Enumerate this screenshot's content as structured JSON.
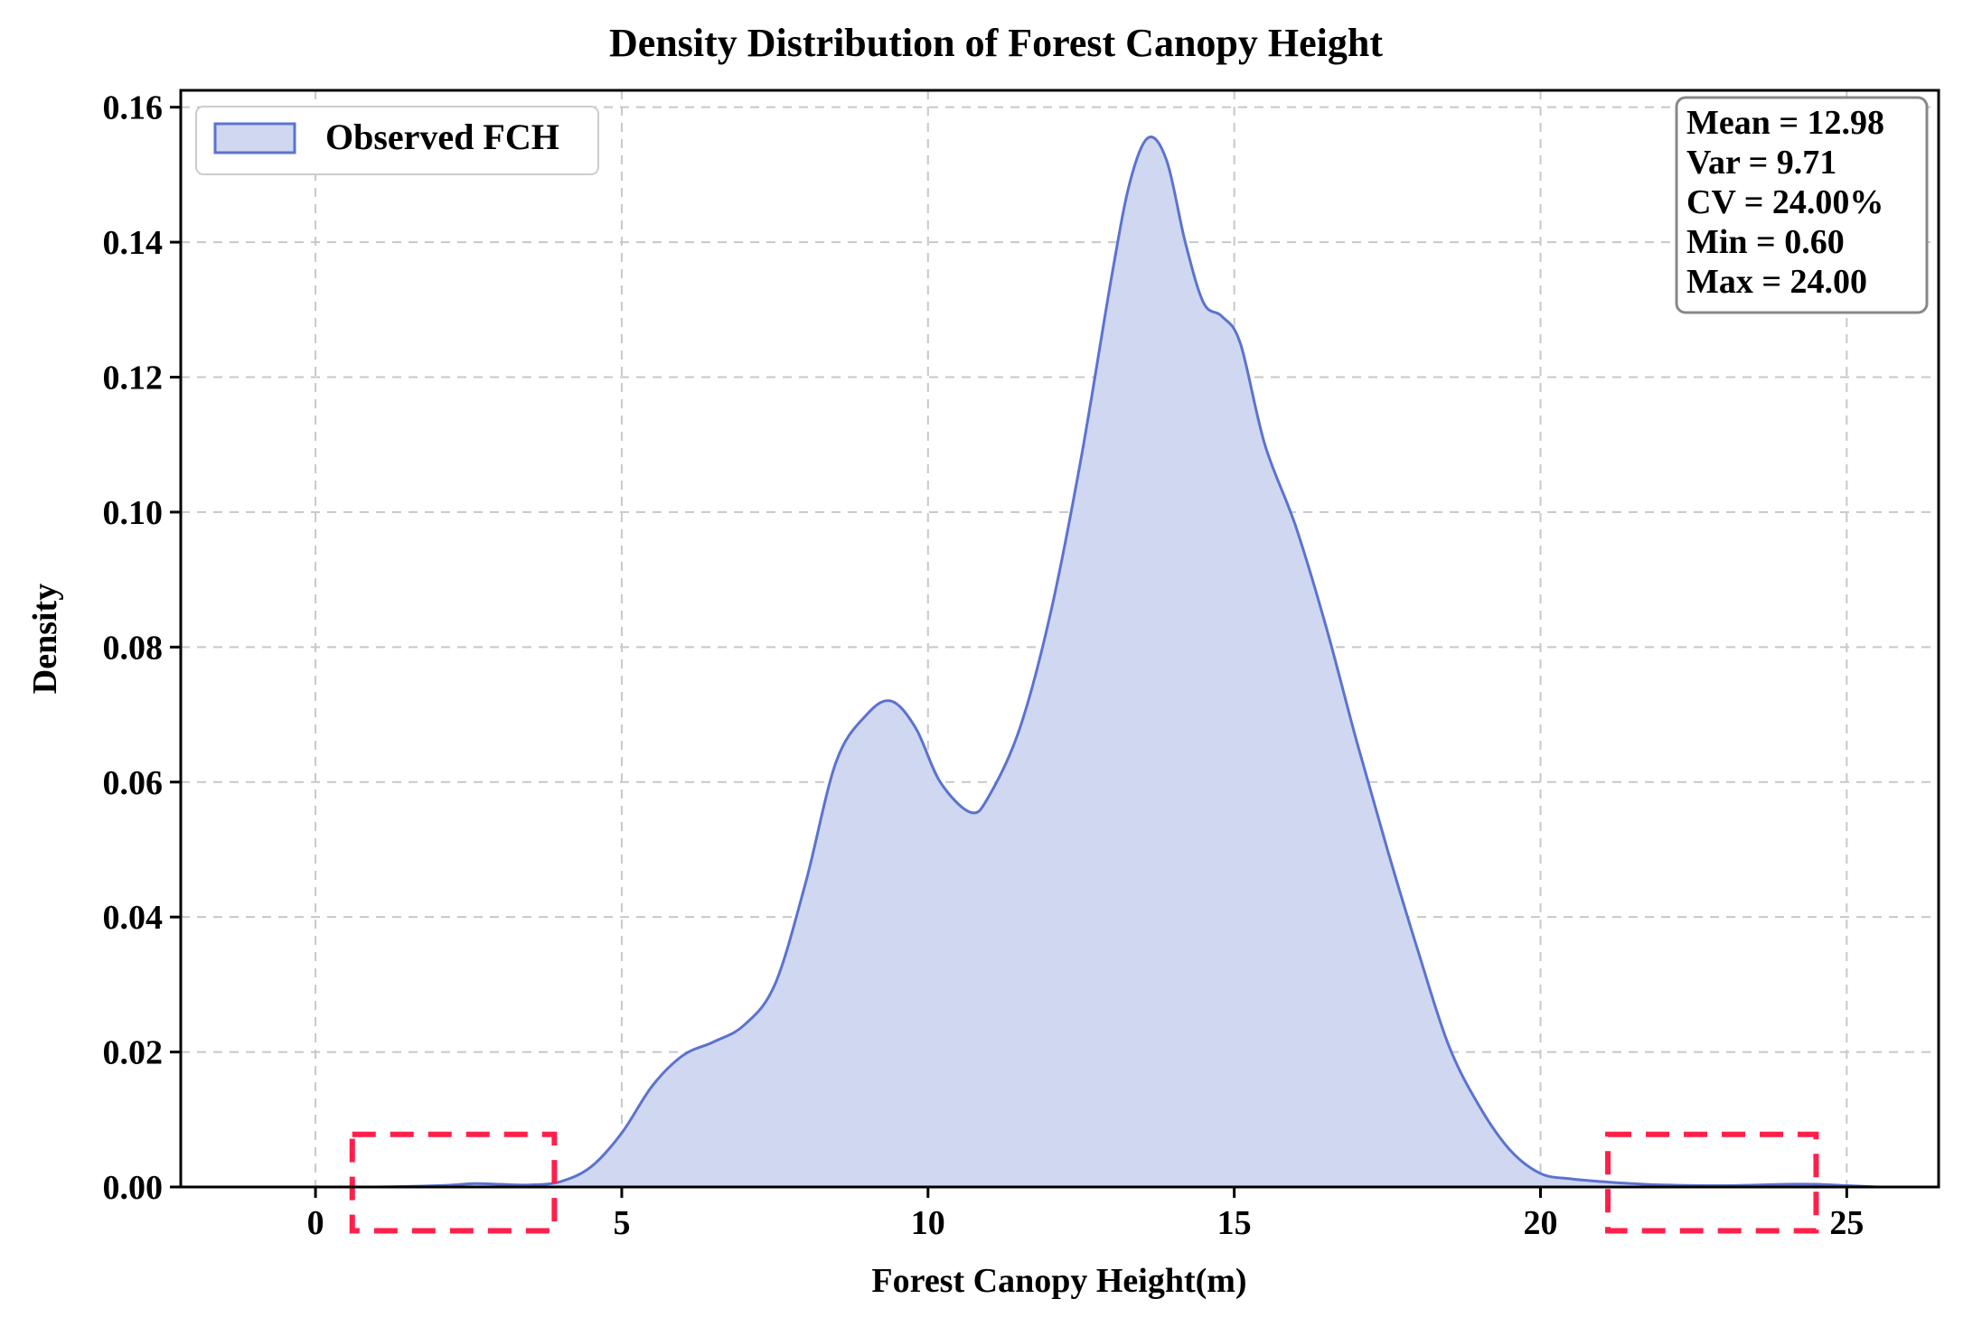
{
  "chart_data": {
    "type": "area",
    "title": "Density Distribution of Forest Canopy Height",
    "xlabel": "Forest Canopy Height(m)",
    "ylabel": "Density",
    "xlim": [
      -2.2,
      26.5
    ],
    "ylim": [
      0,
      0.1625
    ],
    "xticks": [
      0,
      5,
      10,
      15,
      20,
      25
    ],
    "yticks": [
      0.0,
      0.02,
      0.04,
      0.06,
      0.08,
      0.1,
      0.12,
      0.14,
      0.16
    ],
    "ytick_decimals": 2,
    "grid": true,
    "legend_position": "top-left",
    "colors": {
      "line": "#5b73cf",
      "fill": "#d0d7f0",
      "highlight": "#ff1f4b",
      "grid": "#c8c8c8"
    },
    "series": [
      {
        "name": "Observed FCH",
        "x": [
          -1.0,
          0.0,
          1.0,
          2.0,
          2.6,
          3.0,
          3.5,
          4.0,
          4.5,
          5.0,
          5.5,
          6.0,
          6.5,
          7.0,
          7.5,
          8.0,
          8.5,
          9.0,
          9.4,
          9.8,
          10.2,
          10.7,
          11.0,
          11.5,
          12.0,
          12.5,
          13.0,
          13.3,
          13.6,
          13.9,
          14.2,
          14.5,
          14.8,
          15.1,
          15.5,
          16.0,
          16.5,
          17.0,
          17.5,
          18.0,
          18.5,
          19.0,
          19.5,
          20.0,
          20.5,
          21.0,
          21.5,
          22.0,
          23.0,
          24.0,
          24.5,
          25.0,
          25.5
        ],
        "y": [
          0.0,
          0.0,
          0.0,
          0.0002,
          0.0005,
          0.0004,
          0.0003,
          0.0008,
          0.003,
          0.008,
          0.015,
          0.0195,
          0.0215,
          0.024,
          0.03,
          0.045,
          0.063,
          0.07,
          0.072,
          0.068,
          0.06,
          0.0555,
          0.058,
          0.068,
          0.085,
          0.108,
          0.135,
          0.149,
          0.1555,
          0.152,
          0.14,
          0.131,
          0.129,
          0.125,
          0.11,
          0.098,
          0.083,
          0.066,
          0.05,
          0.035,
          0.021,
          0.012,
          0.0055,
          0.002,
          0.0012,
          0.0008,
          0.0005,
          0.0003,
          0.0002,
          0.0004,
          0.0004,
          0.0002,
          0.0
        ]
      }
    ],
    "stats_box": [
      "Mean = 12.98",
      "Var = 9.71",
      "CV = 24.00%",
      "Min = 0.60",
      "Max = 24.00"
    ],
    "highlight_regions": [
      {
        "x": [
          0.6,
          3.9
        ],
        "y": [
          -0.0065,
          0.0078
        ]
      },
      {
        "x": [
          21.1,
          24.5
        ],
        "y": [
          -0.0065,
          0.0078
        ]
      }
    ]
  }
}
